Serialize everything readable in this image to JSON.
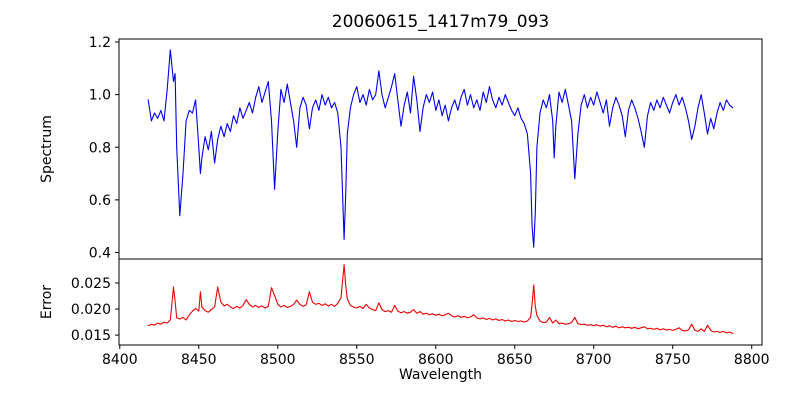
{
  "figure": {
    "title": "20060615_1417m79_093",
    "xlabel": "Wavelength",
    "background": "#ffffff"
  },
  "chart_data": [
    {
      "type": "line",
      "name": "spectrum",
      "ylabel": "Spectrum",
      "line_color": "#0000ee",
      "xlim": [
        8399.5,
        8806.5
      ],
      "ylim": [
        0.3753,
        1.2114
      ],
      "grid": false,
      "legend": "none",
      "yticks": [
        0.4,
        0.6,
        0.8,
        1.0,
        1.2
      ],
      "ytick_labels": [
        "0.4",
        "0.6",
        "0.8",
        "1.0",
        "1.2"
      ],
      "x": [
        8418,
        8420,
        8422,
        8424,
        8426,
        8428,
        8430,
        8432,
        8434,
        8435,
        8436,
        8438,
        8440,
        8442,
        8444,
        8446,
        8448,
        8450,
        8451,
        8452,
        8454,
        8456,
        8458,
        8460,
        8462,
        8464,
        8466,
        8468,
        8470,
        8472,
        8474,
        8476,
        8478,
        8480,
        8482,
        8484,
        8486,
        8488,
        8490,
        8492,
        8494,
        8496,
        8498,
        8500,
        8502,
        8504,
        8506,
        8508,
        8510,
        8512,
        8514,
        8516,
        8518,
        8520,
        8522,
        8524,
        8526,
        8528,
        8530,
        8532,
        8534,
        8536,
        8538,
        8540,
        8542,
        8543,
        8544,
        8546,
        8548,
        8550,
        8552,
        8554,
        8556,
        8558,
        8560,
        8562,
        8564,
        8566,
        8568,
        8570,
        8572,
        8574,
        8576,
        8578,
        8580,
        8582,
        8584,
        8586,
        8588,
        8590,
        8592,
        8594,
        8596,
        8598,
        8600,
        8602,
        8604,
        8606,
        8608,
        8610,
        8612,
        8614,
        8616,
        8618,
        8620,
        8622,
        8624,
        8626,
        8628,
        8630,
        8632,
        8634,
        8636,
        8638,
        8640,
        8642,
        8644,
        8646,
        8648,
        8650,
        8652,
        8654,
        8656,
        8658,
        8660,
        8661,
        8662,
        8663,
        8664,
        8666,
        8668,
        8670,
        8672,
        8674,
        8675,
        8676,
        8678,
        8680,
        8682,
        8684,
        8686,
        8688,
        8690,
        8692,
        8694,
        8696,
        8698,
        8700,
        8702,
        8704,
        8706,
        8708,
        8710,
        8712,
        8714,
        8716,
        8718,
        8720,
        8722,
        8724,
        8726,
        8728,
        8730,
        8732,
        8734,
        8736,
        8738,
        8740,
        8742,
        8744,
        8746,
        8748,
        8750,
        8752,
        8754,
        8756,
        8758,
        8760,
        8762,
        8764,
        8766,
        8768,
        8770,
        8772,
        8774,
        8776,
        8778,
        8780,
        8782,
        8784,
        8786,
        8788
      ],
      "y": [
        0.98,
        0.9,
        0.93,
        0.91,
        0.94,
        0.9,
        1.02,
        1.17,
        1.05,
        1.08,
        0.8,
        0.54,
        0.7,
        0.9,
        0.94,
        0.93,
        0.98,
        0.8,
        0.7,
        0.76,
        0.84,
        0.79,
        0.86,
        0.74,
        0.83,
        0.88,
        0.84,
        0.89,
        0.86,
        0.92,
        0.89,
        0.95,
        0.91,
        0.94,
        0.97,
        0.93,
        0.99,
        1.03,
        0.97,
        1.01,
        1.05,
        0.9,
        0.64,
        0.86,
        1.02,
        0.97,
        1.04,
        0.97,
        0.9,
        0.8,
        0.95,
        0.99,
        0.96,
        0.87,
        0.95,
        0.98,
        0.94,
        1.0,
        0.96,
        0.99,
        0.95,
        0.97,
        0.93,
        0.8,
        0.45,
        0.62,
        0.85,
        0.95,
        1.0,
        1.03,
        0.97,
        1.0,
        0.96,
        1.02,
        0.98,
        1.0,
        1.09,
        1.0,
        0.95,
        0.99,
        1.03,
        1.08,
        0.98,
        0.88,
        0.96,
        1.01,
        0.93,
        1.07,
        0.98,
        0.86,
        0.95,
        1.0,
        0.97,
        1.01,
        0.94,
        0.98,
        0.92,
        0.96,
        0.9,
        0.95,
        0.98,
        0.94,
        0.99,
        1.02,
        0.96,
        1.0,
        0.95,
        0.98,
        0.94,
        1.01,
        0.97,
        1.03,
        0.98,
        0.95,
        0.99,
        0.96,
        1.0,
        0.97,
        0.94,
        0.92,
        0.95,
        0.91,
        0.89,
        0.85,
        0.7,
        0.5,
        0.42,
        0.55,
        0.8,
        0.93,
        0.98,
        0.95,
        1.0,
        0.9,
        0.76,
        0.88,
        1.01,
        0.97,
        1.02,
        0.96,
        0.9,
        0.68,
        0.85,
        0.96,
        1.0,
        0.95,
        0.99,
        0.96,
        1.01,
        0.97,
        0.93,
        0.98,
        0.88,
        0.95,
        0.99,
        0.96,
        0.92,
        0.84,
        0.94,
        0.98,
        0.95,
        0.91,
        0.86,
        0.8,
        0.92,
        0.97,
        0.94,
        0.98,
        0.95,
        0.99,
        0.96,
        0.93,
        0.97,
        1.0,
        0.96,
        0.99,
        0.95,
        0.9,
        0.83,
        0.88,
        0.95,
        1.0,
        0.93,
        0.85,
        0.91,
        0.87,
        0.93,
        0.97,
        0.94,
        0.98,
        0.96,
        0.95
      ]
    },
    {
      "type": "line",
      "name": "error",
      "ylabel": "Error",
      "line_color": "#ee0000",
      "xlim": [
        8399.5,
        8806.5
      ],
      "ylim": [
        0.0131,
        0.0296
      ],
      "grid": false,
      "legend": "none",
      "yticks": [
        0.015,
        0.02,
        0.025
      ],
      "ytick_labels": [
        "0.015",
        "0.020",
        "0.025"
      ],
      "xticks": [
        8400,
        8450,
        8500,
        8550,
        8600,
        8650,
        8700,
        8750,
        8800
      ],
      "xtick_labels": [
        "8400",
        "8450",
        "8500",
        "8550",
        "8600",
        "8650",
        "8700",
        "8750",
        "8800"
      ],
      "x": [
        8418,
        8420,
        8422,
        8424,
        8426,
        8428,
        8430,
        8432,
        8434,
        8435,
        8436,
        8438,
        8440,
        8442,
        8444,
        8446,
        8448,
        8450,
        8451,
        8452,
        8454,
        8456,
        8458,
        8460,
        8462,
        8464,
        8466,
        8468,
        8470,
        8472,
        8474,
        8476,
        8478,
        8480,
        8482,
        8484,
        8486,
        8488,
        8490,
        8492,
        8494,
        8496,
        8498,
        8500,
        8502,
        8504,
        8506,
        8508,
        8510,
        8512,
        8514,
        8516,
        8518,
        8520,
        8522,
        8524,
        8526,
        8528,
        8530,
        8532,
        8534,
        8536,
        8538,
        8540,
        8542,
        8543,
        8544,
        8546,
        8548,
        8550,
        8552,
        8554,
        8556,
        8558,
        8560,
        8562,
        8564,
        8566,
        8568,
        8570,
        8572,
        8574,
        8576,
        8578,
        8580,
        8582,
        8584,
        8586,
        8588,
        8590,
        8592,
        8594,
        8596,
        8598,
        8600,
        8602,
        8604,
        8606,
        8608,
        8610,
        8612,
        8614,
        8616,
        8618,
        8620,
        8622,
        8624,
        8626,
        8628,
        8630,
        8632,
        8634,
        8636,
        8638,
        8640,
        8642,
        8644,
        8646,
        8648,
        8650,
        8652,
        8654,
        8656,
        8658,
        8660,
        8661,
        8662,
        8663,
        8664,
        8666,
        8668,
        8670,
        8672,
        8674,
        8675,
        8676,
        8678,
        8680,
        8682,
        8684,
        8686,
        8688,
        8690,
        8692,
        8694,
        8696,
        8698,
        8700,
        8702,
        8704,
        8706,
        8708,
        8710,
        8712,
        8714,
        8716,
        8718,
        8720,
        8722,
        8724,
        8726,
        8728,
        8730,
        8732,
        8734,
        8736,
        8738,
        8740,
        8742,
        8744,
        8746,
        8748,
        8750,
        8752,
        8754,
        8756,
        8758,
        8760,
        8762,
        8764,
        8766,
        8768,
        8770,
        8772,
        8774,
        8776,
        8778,
        8780,
        8782,
        8784,
        8786,
        8788
      ],
      "y": [
        0.0168,
        0.0171,
        0.0169,
        0.0173,
        0.0171,
        0.0175,
        0.0173,
        0.0179,
        0.0242,
        0.0215,
        0.0183,
        0.0181,
        0.0184,
        0.0179,
        0.0189,
        0.0196,
        0.0201,
        0.0196,
        0.0233,
        0.0204,
        0.0197,
        0.0194,
        0.0199,
        0.0204,
        0.0242,
        0.0213,
        0.0206,
        0.0209,
        0.0204,
        0.0201,
        0.0205,
        0.0202,
        0.0207,
        0.0218,
        0.0209,
        0.0204,
        0.0207,
        0.0203,
        0.0206,
        0.0202,
        0.0205,
        0.0241,
        0.0226,
        0.0209,
        0.0204,
        0.0207,
        0.0203,
        0.0205,
        0.0209,
        0.0217,
        0.0209,
        0.0205,
        0.0208,
        0.0233,
        0.0213,
        0.0209,
        0.0211,
        0.0207,
        0.021,
        0.0206,
        0.0209,
        0.0205,
        0.0211,
        0.0222,
        0.0285,
        0.0246,
        0.0219,
        0.0207,
        0.0204,
        0.0202,
        0.0205,
        0.0201,
        0.0209,
        0.0202,
        0.0199,
        0.0197,
        0.0212,
        0.0199,
        0.0195,
        0.0197,
        0.0194,
        0.0207,
        0.0196,
        0.0193,
        0.0195,
        0.0192,
        0.0194,
        0.0199,
        0.0192,
        0.0195,
        0.019,
        0.0192,
        0.0189,
        0.0191,
        0.0188,
        0.019,
        0.0187,
        0.0189,
        0.0192,
        0.0187,
        0.0185,
        0.0187,
        0.0184,
        0.0186,
        0.0183,
        0.0185,
        0.0189,
        0.0183,
        0.0181,
        0.0183,
        0.018,
        0.0182,
        0.0179,
        0.0181,
        0.0178,
        0.018,
        0.0177,
        0.0179,
        0.0176,
        0.0178,
        0.0176,
        0.0177,
        0.0175,
        0.0177,
        0.0184,
        0.021,
        0.0246,
        0.0205,
        0.0188,
        0.0177,
        0.0174,
        0.0175,
        0.0184,
        0.0173,
        0.0176,
        0.0179,
        0.0172,
        0.0173,
        0.0171,
        0.0172,
        0.0174,
        0.0184,
        0.0172,
        0.017,
        0.0171,
        0.0169,
        0.017,
        0.0168,
        0.017,
        0.0167,
        0.0169,
        0.0166,
        0.0168,
        0.0165,
        0.0167,
        0.0164,
        0.0166,
        0.0164,
        0.0165,
        0.0163,
        0.0165,
        0.0162,
        0.0164,
        0.0166,
        0.0162,
        0.0163,
        0.0161,
        0.0163,
        0.016,
        0.0162,
        0.016,
        0.0161,
        0.0159,
        0.0161,
        0.0164,
        0.0159,
        0.0158,
        0.016,
        0.0171,
        0.0159,
        0.0157,
        0.0162,
        0.0157,
        0.0169,
        0.0159,
        0.0156,
        0.0157,
        0.0155,
        0.0157,
        0.0154,
        0.0156,
        0.0153
      ]
    }
  ]
}
